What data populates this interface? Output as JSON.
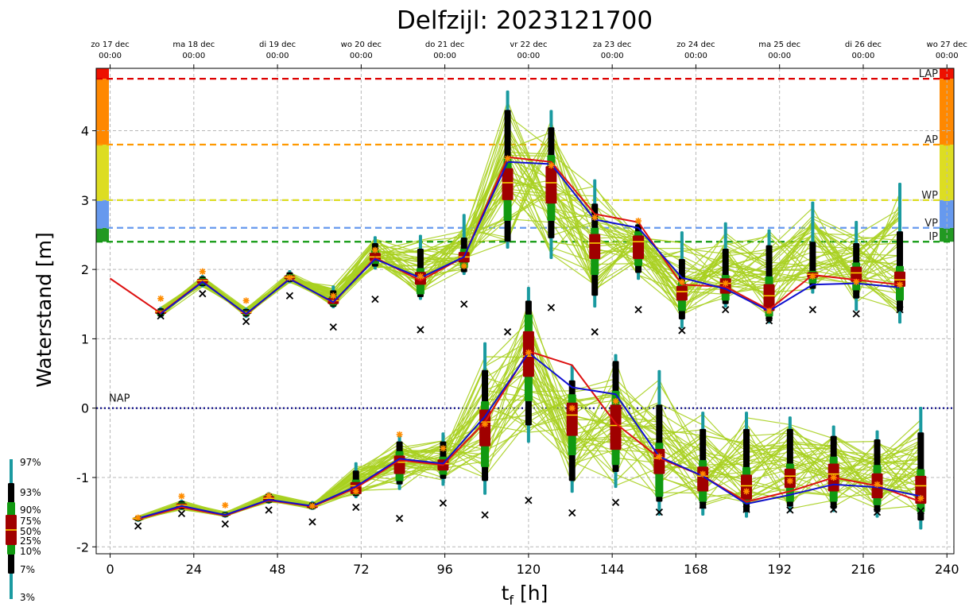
{
  "chart_data": {
    "type": "line",
    "title": "Delfzijl: 2023121700",
    "xlabel": "t_f [h]",
    "xlabel_main": "t",
    "xlabel_sub": "f",
    "xlabel_unit": " [h]",
    "ylabel": "Waterstand [m]",
    "xlim": [
      -4,
      242
    ],
    "ylim": [
      -2.1,
      4.9
    ],
    "xticks": [
      0,
      24,
      48,
      72,
      96,
      120,
      144,
      168,
      192,
      216,
      240
    ],
    "yticks": [
      -2,
      -1,
      0,
      1,
      2,
      3,
      4
    ],
    "grid": true,
    "top_axis": [
      {
        "x": 0,
        "day": "zo 17 dec",
        "time": "00:00"
      },
      {
        "x": 24,
        "day": "ma 18 dec",
        "time": "00:00"
      },
      {
        "x": 48,
        "day": "di 19 dec",
        "time": "00:00"
      },
      {
        "x": 72,
        "day": "wo 20 dec",
        "time": "00:00"
      },
      {
        "x": 96,
        "day": "do 21 dec",
        "time": "00:00"
      },
      {
        "x": 120,
        "day": "vr 22 dec",
        "time": "00:00"
      },
      {
        "x": 144,
        "day": "za 23 dec",
        "time": "00:00"
      },
      {
        "x": 168,
        "day": "zo 24 dec",
        "time": "00:00"
      },
      {
        "x": 192,
        "day": "ma 25 dec",
        "time": "00:00"
      },
      {
        "x": 216,
        "day": "di 26 dec",
        "time": "00:00"
      },
      {
        "x": 240,
        "day": "wo 27 dec",
        "time": "00:00"
      }
    ],
    "thresholds": [
      {
        "label": "LAP",
        "y": 4.75,
        "color": "#dd0000"
      },
      {
        "label": "AP",
        "y": 3.8,
        "color": "#ff9900"
      },
      {
        "label": "WP",
        "y": 3.0,
        "color": "#dddd22"
      },
      {
        "label": "VP",
        "y": 2.6,
        "color": "#6699ee"
      },
      {
        "label": "IP",
        "y": 2.4,
        "color": "#119911"
      }
    ],
    "nap": {
      "label": "NAP",
      "y": 0,
      "color": "#000080"
    },
    "bands": [
      {
        "color": "#229922",
        "y0": 2.4,
        "y1": 2.6
      },
      {
        "color": "#6699ee",
        "y0": 2.6,
        "y1": 3.0
      },
      {
        "color": "#dddd22",
        "y0": 3.0,
        "y1": 3.8
      },
      {
        "color": "#ff8800",
        "y0": 3.8,
        "y1": 4.75
      },
      {
        "color": "#ee1100",
        "y0": 4.75,
        "y1": 4.9
      }
    ],
    "box_legend": [
      "97%",
      "93%",
      "90%",
      "75%",
      "50%",
      "25%",
      "10%",
      "7%",
      "3%"
    ],
    "colors": {
      "ensemble": "#a8d020",
      "blue": "#1010d0",
      "red": "#dd1111",
      "box50": "#a00000",
      "box80": "#119911",
      "box86": "#000000",
      "box94": "#1a9aa0",
      "median": "#ffdd00",
      "cross": "#000000",
      "star": "#ff8c00"
    },
    "high": [
      {
        "x": 14.5,
        "q": [
          1.3,
          1.32,
          1.34,
          1.36,
          1.39,
          1.42,
          1.44,
          1.46
        ],
        "obs": 1.33,
        "star": 1.58
      },
      {
        "x": 26.5,
        "q": [
          1.74,
          1.76,
          1.78,
          1.8,
          1.84,
          1.88,
          1.9,
          1.92
        ],
        "obs": 1.65,
        "star": 1.97
      },
      {
        "x": 39,
        "q": [
          1.3,
          1.32,
          1.34,
          1.36,
          1.38,
          1.41,
          1.43,
          1.45
        ],
        "obs": 1.25,
        "star": 1.55
      },
      {
        "x": 51.5,
        "q": [
          1.8,
          1.82,
          1.84,
          1.86,
          1.89,
          1.93,
          1.96,
          1.99
        ],
        "obs": 1.62,
        "star": 1.88
      },
      {
        "x": 64,
        "q": [
          1.44,
          1.46,
          1.48,
          1.5,
          1.55,
          1.62,
          1.7,
          1.77
        ],
        "obs": 1.17,
        "star": 1.62
      },
      {
        "x": 76,
        "q": [
          2.0,
          2.04,
          2.08,
          2.12,
          2.18,
          2.28,
          2.38,
          2.48
        ],
        "obs": 1.57,
        "star": 2.28
      },
      {
        "x": 89,
        "q": [
          1.56,
          1.6,
          1.64,
          1.78,
          1.88,
          2.02,
          2.3,
          2.5
        ],
        "obs": 1.13,
        "star": 1.9
      },
      {
        "x": 101.5,
        "q": [
          1.92,
          1.96,
          2.02,
          2.1,
          2.18,
          2.3,
          2.46,
          2.8
        ],
        "obs": 1.5,
        "star": 2.05
      },
      {
        "x": 114,
        "q": [
          2.3,
          2.4,
          2.7,
          3.0,
          3.25,
          3.6,
          4.3,
          4.58
        ],
        "obs": 1.1,
        "star": 3.6
      },
      {
        "x": 126.5,
        "q": [
          2.15,
          2.45,
          2.7,
          2.95,
          3.25,
          3.65,
          4.05,
          4.3
        ],
        "obs": 1.45,
        "star": 3.5
      },
      {
        "x": 139,
        "q": [
          1.45,
          1.62,
          1.92,
          2.15,
          2.38,
          2.6,
          2.95,
          3.3
        ],
        "obs": 1.1,
        "star": 2.75
      },
      {
        "x": 151.5,
        "q": [
          1.85,
          1.95,
          2.05,
          2.15,
          2.4,
          2.55,
          2.65,
          2.72
        ],
        "obs": 1.42,
        "star": 2.7
      },
      {
        "x": 164,
        "q": [
          1.15,
          1.28,
          1.4,
          1.55,
          1.68,
          1.82,
          2.15,
          2.55
        ],
        "obs": 1.12,
        "star": 1.82
      },
      {
        "x": 176.5,
        "q": [
          1.45,
          1.5,
          1.55,
          1.65,
          1.8,
          1.92,
          2.3,
          2.68
        ],
        "obs": 1.42,
        "star": 1.8
      },
      {
        "x": 189,
        "q": [
          1.22,
          1.25,
          1.32,
          1.4,
          1.62,
          1.9,
          2.35,
          2.58
        ],
        "obs": 1.26,
        "star": 1.4
      },
      {
        "x": 201.5,
        "q": [
          1.65,
          1.72,
          1.8,
          1.88,
          1.93,
          1.98,
          2.4,
          2.98
        ],
        "obs": 1.42,
        "star": 1.9
      },
      {
        "x": 214,
        "q": [
          1.4,
          1.58,
          1.7,
          1.82,
          1.95,
          2.1,
          2.38,
          2.7
        ],
        "obs": 1.36,
        "star": 1.82
      },
      {
        "x": 226.5,
        "q": [
          1.22,
          1.4,
          1.55,
          1.75,
          1.85,
          2.05,
          2.55,
          3.25
        ],
        "obs": 1.42,
        "star": 1.78
      }
    ],
    "low": [
      {
        "x": 8,
        "q": [
          -1.64,
          -1.63,
          -1.62,
          -1.61,
          -1.59,
          -1.57,
          -1.56,
          -1.55
        ],
        "obs": -1.7,
        "star": -1.58
      },
      {
        "x": 20.5,
        "q": [
          -1.47,
          -1.46,
          -1.44,
          -1.43,
          -1.4,
          -1.36,
          -1.34,
          -1.32
        ],
        "obs": -1.52,
        "star": -1.27
      },
      {
        "x": 33,
        "q": [
          -1.58,
          -1.57,
          -1.56,
          -1.55,
          -1.53,
          -1.51,
          -1.5,
          -1.49
        ],
        "obs": -1.67,
        "star": -1.4
      },
      {
        "x": 45.5,
        "q": [
          -1.38,
          -1.37,
          -1.36,
          -1.35,
          -1.3,
          -1.25,
          -1.23,
          -1.21
        ],
        "obs": -1.47,
        "star": -1.26
      },
      {
        "x": 58,
        "q": [
          -1.47,
          -1.46,
          -1.45,
          -1.44,
          -1.41,
          -1.38,
          -1.36,
          -1.34
        ],
        "obs": -1.64,
        "star": -1.41
      },
      {
        "x": 70.5,
        "q": [
          -1.3,
          -1.27,
          -1.25,
          -1.24,
          -1.12,
          -1.03,
          -0.9,
          -0.78
        ],
        "obs": -1.43,
        "star": -1.2
      },
      {
        "x": 83,
        "q": [
          -1.18,
          -1.1,
          -1.05,
          -0.95,
          -0.78,
          -0.62,
          -0.48,
          -0.36
        ],
        "obs": -1.59,
        "star": -0.38
      },
      {
        "x": 95.5,
        "q": [
          -1.12,
          -1.02,
          -0.96,
          -0.9,
          -0.8,
          -0.7,
          -0.48,
          -0.35
        ],
        "obs": -1.37,
        "star": -0.58
      },
      {
        "x": 107.5,
        "q": [
          -1.25,
          -1.05,
          -0.85,
          -0.55,
          -0.2,
          0.1,
          0.55,
          0.95
        ],
        "obs": -1.54,
        "star": -0.23
      },
      {
        "x": 120,
        "q": [
          -0.5,
          -0.25,
          0.1,
          0.45,
          0.75,
          1.35,
          1.55,
          1.75
        ],
        "obs": -1.33,
        "star": 0.8
      },
      {
        "x": 132.5,
        "q": [
          -1.22,
          -1.05,
          -0.68,
          -0.4,
          -0.1,
          0.2,
          0.4,
          0.62
        ],
        "obs": -1.51,
        "star": 0.0
      },
      {
        "x": 145,
        "q": [
          -1.15,
          -0.92,
          -0.82,
          -0.6,
          -0.25,
          0.25,
          0.68,
          0.78
        ],
        "obs": -1.36,
        "star": 0.1
      },
      {
        "x": 157.5,
        "q": [
          -1.55,
          -1.35,
          -1.28,
          -0.95,
          -0.72,
          -0.5,
          0.05,
          0.55
        ],
        "obs": -1.5,
        "star": -0.7
      },
      {
        "x": 170,
        "q": [
          -1.55,
          -1.45,
          -1.35,
          -1.2,
          -0.98,
          -0.75,
          -0.3,
          -0.05
        ],
        "obs": -1.4,
        "star": -0.95
      },
      {
        "x": 182.5,
        "q": [
          -1.58,
          -1.5,
          -1.38,
          -1.32,
          -1.12,
          -0.85,
          -0.3,
          -0.05
        ],
        "obs": -1.46,
        "star": -1.2
      },
      {
        "x": 195,
        "q": [
          -1.5,
          -1.42,
          -1.35,
          -1.15,
          -0.98,
          -0.8,
          -0.3,
          -0.12
        ],
        "obs": -1.47,
        "star": -1.05
      },
      {
        "x": 207.5,
        "q": [
          -1.5,
          -1.45,
          -1.35,
          -1.2,
          -0.95,
          -0.7,
          -0.4,
          -0.25
        ],
        "obs": -1.46,
        "star": -1.0
      },
      {
        "x": 220,
        "q": [
          -1.58,
          -1.5,
          -1.4,
          -1.3,
          -1.12,
          -0.82,
          -0.45,
          -0.32
        ],
        "obs": -1.5,
        "star": -1.1
      },
      {
        "x": 232.5,
        "q": [
          -1.75,
          -1.62,
          -1.5,
          -1.38,
          -1.12,
          -0.88,
          -0.35,
          0.02
        ],
        "obs": -1.48,
        "star": -1.3
      }
    ],
    "series": [
      {
        "color": "#dd1111",
        "points": [
          [
            0,
            1.87
          ],
          [
            14.5,
            1.37
          ],
          [
            26.5,
            1.83
          ],
          [
            39,
            1.35
          ],
          [
            51.5,
            1.87
          ],
          [
            64,
            1.52
          ],
          [
            76,
            2.17
          ],
          [
            89,
            1.84
          ],
          [
            101.5,
            2.18
          ],
          [
            114,
            3.62
          ],
          [
            126.5,
            3.55
          ],
          [
            139,
            2.8
          ],
          [
            151.5,
            2.68
          ],
          [
            164,
            1.78
          ],
          [
            176.5,
            1.75
          ],
          [
            189,
            1.42
          ],
          [
            201.5,
            1.92
          ],
          [
            214,
            1.85
          ],
          [
            226.5,
            1.78
          ]
        ]
      },
      {
        "color": "#1010d0",
        "points": [
          [
            14.5,
            1.36
          ],
          [
            26.5,
            1.82
          ],
          [
            39,
            1.36
          ],
          [
            51.5,
            1.86
          ],
          [
            64,
            1.53
          ],
          [
            76,
            2.15
          ],
          [
            89,
            1.88
          ],
          [
            101.5,
            2.18
          ],
          [
            114,
            3.55
          ],
          [
            126.5,
            3.52
          ],
          [
            139,
            2.72
          ],
          [
            151.5,
            2.6
          ],
          [
            164,
            1.88
          ],
          [
            176.5,
            1.72
          ],
          [
            189,
            1.4
          ],
          [
            201.5,
            1.78
          ],
          [
            214,
            1.8
          ],
          [
            226.5,
            1.74
          ]
        ]
      },
      {
        "color": "#dd1111",
        "points": [
          [
            8,
            -1.6
          ],
          [
            20.5,
            -1.43
          ],
          [
            33,
            -1.55
          ],
          [
            45.5,
            -1.33
          ],
          [
            58,
            -1.42
          ],
          [
            70.5,
            -1.15
          ],
          [
            83,
            -0.75
          ],
          [
            95.5,
            -0.82
          ],
          [
            107.5,
            -0.2
          ],
          [
            120,
            0.82
          ],
          [
            132.5,
            0.62
          ],
          [
            145,
            -0.22
          ],
          [
            157.5,
            -0.72
          ],
          [
            170,
            -0.98
          ],
          [
            182.5,
            -1.35
          ],
          [
            195,
            -1.2
          ],
          [
            207.5,
            -1.0
          ],
          [
            220,
            -1.12
          ],
          [
            232.5,
            -1.35
          ]
        ]
      },
      {
        "color": "#1010d0",
        "points": [
          [
            8,
            -1.59
          ],
          [
            20.5,
            -1.41
          ],
          [
            33,
            -1.54
          ],
          [
            45.5,
            -1.32
          ],
          [
            58,
            -1.41
          ],
          [
            70.5,
            -1.13
          ],
          [
            83,
            -0.73
          ],
          [
            95.5,
            -0.8
          ],
          [
            107.5,
            -0.12
          ],
          [
            120,
            0.8
          ],
          [
            132.5,
            0.3
          ],
          [
            145,
            0.2
          ],
          [
            157.5,
            -0.7
          ],
          [
            170,
            -0.98
          ],
          [
            182.5,
            -1.38
          ],
          [
            195,
            -1.25
          ],
          [
            207.5,
            -1.1
          ],
          [
            220,
            -1.14
          ],
          [
            232.5,
            -1.27
          ]
        ]
      }
    ]
  }
}
